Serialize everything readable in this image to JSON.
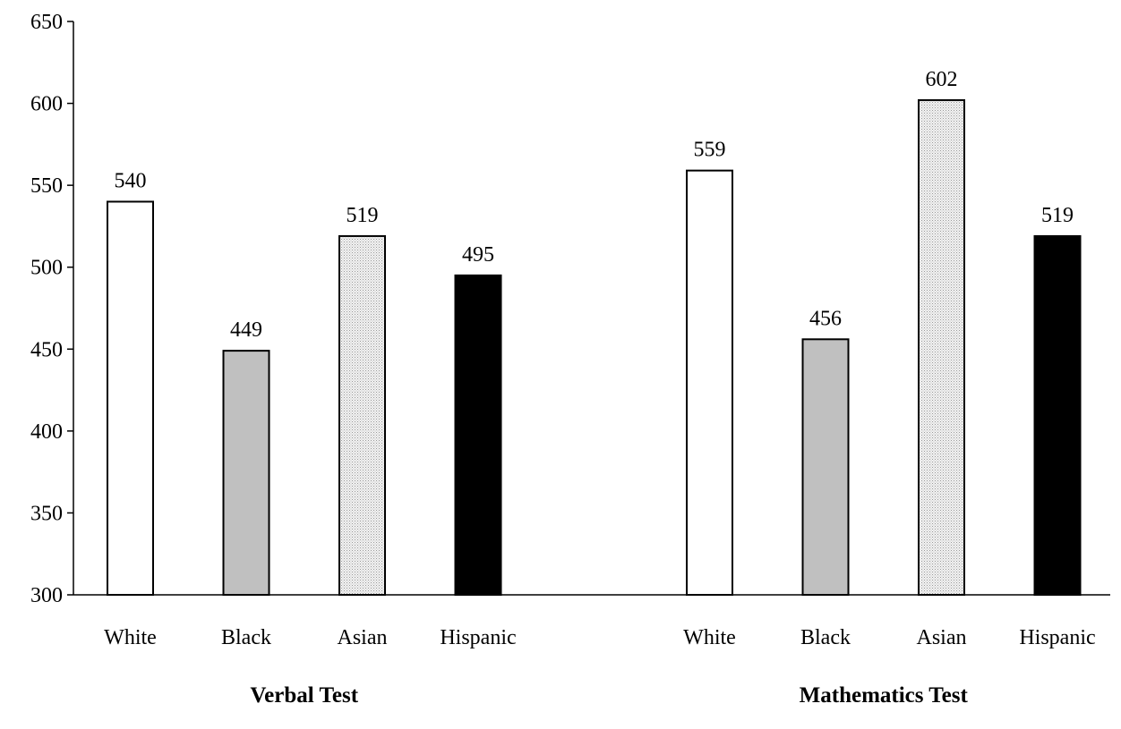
{
  "chart_data": {
    "type": "bar",
    "title": "",
    "xlabel": "",
    "ylabel": "",
    "ylim": [
      300,
      650
    ],
    "yticks": [
      300,
      350,
      400,
      450,
      500,
      550,
      600,
      650
    ],
    "grid": false,
    "groups": [
      {
        "name": "Verbal Test",
        "categories": [
          "White",
          "Black",
          "Asian",
          "Hispanic"
        ],
        "values": [
          540,
          449,
          519,
          495
        ]
      },
      {
        "name": "Mathematics Test",
        "categories": [
          "White",
          "Black",
          "Asian",
          "Hispanic"
        ],
        "values": [
          559,
          456,
          602,
          519
        ]
      }
    ],
    "category_fills": {
      "White": "#ffffff",
      "Black": "#c0c0c0",
      "Asian": "dotted-light-gray",
      "Hispanic": "#000000"
    }
  }
}
